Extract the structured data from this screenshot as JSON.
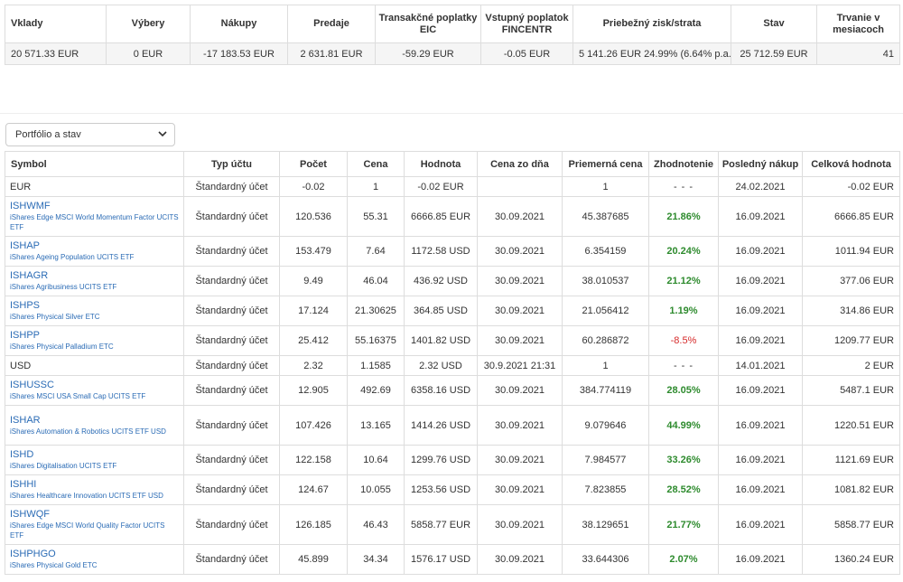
{
  "summary": {
    "headers": [
      "Vklady",
      "Výbery",
      "Nákupy",
      "Predaje",
      "Transakčné poplatky EIC",
      "Vstupný poplatok FINCENTR",
      "Priebežný zisk/strata",
      "Stav",
      "Trvanie v mesiacoch"
    ],
    "values": [
      "20 571.33 EUR",
      "0 EUR",
      "-17 183.53 EUR",
      "2 631.81 EUR",
      "-59.29 EUR",
      "-0.05 EUR",
      "5 141.26 EUR 24.99% (6.64% p.a.)",
      "25 712.59 EUR",
      "41"
    ]
  },
  "filter": {
    "selected": "Portfólio a stav"
  },
  "holdings": {
    "headers": [
      "Symbol",
      "Typ účtu",
      "Počet",
      "Cena",
      "Hodnota",
      "Cena zo dňa",
      "Priemerná cena",
      "Zhodnotenie",
      "Posledný nákup",
      "Celková hodnota"
    ],
    "rows": [
      {
        "symbol": "EUR",
        "desc": "",
        "type": "Štandardný účet",
        "count": "-0.02",
        "price": "1",
        "value": "-0.02 EUR",
        "price_date": "",
        "avg": "1",
        "gain": "- - -",
        "gain_kind": "none",
        "last": "24.02.2021",
        "total": "-0.02 EUR"
      },
      {
        "symbol": "ISHWMF",
        "desc": "iShares Edge MSCI World Momentum Factor UCITS ETF",
        "type": "Štandardný účet",
        "count": "120.536",
        "price": "55.31",
        "value": "6666.85 EUR",
        "price_date": "30.09.2021",
        "avg": "45.387685",
        "gain": "21.86%",
        "gain_kind": "pos",
        "last": "16.09.2021",
        "total": "6666.85 EUR"
      },
      {
        "symbol": "ISHAP",
        "desc": "iShares Ageing Population UCITS ETF",
        "type": "Štandardný účet",
        "count": "153.479",
        "price": "7.64",
        "value": "1172.58 USD",
        "price_date": "30.09.2021",
        "avg": "6.354159",
        "gain": "20.24%",
        "gain_kind": "pos",
        "last": "16.09.2021",
        "total": "1011.94 EUR"
      },
      {
        "symbol": "ISHAGR",
        "desc": "iShares Agribusiness UCITS ETF",
        "type": "Štandardný účet",
        "count": "9.49",
        "price": "46.04",
        "value": "436.92 USD",
        "price_date": "30.09.2021",
        "avg": "38.010537",
        "gain": "21.12%",
        "gain_kind": "pos",
        "last": "16.09.2021",
        "total": "377.06 EUR"
      },
      {
        "symbol": "ISHPS",
        "desc": "iShares Physical Silver ETC",
        "type": "Štandardný účet",
        "count": "17.124",
        "price": "21.30625",
        "value": "364.85 USD",
        "price_date": "30.09.2021",
        "avg": "21.056412",
        "gain": "1.19%",
        "gain_kind": "pos",
        "last": "16.09.2021",
        "total": "314.86 EUR"
      },
      {
        "symbol": "ISHPP",
        "desc": "iShares Physical Palladium ETC",
        "type": "Štandardný účet",
        "count": "25.412",
        "price": "55.16375",
        "value": "1401.82 USD",
        "price_date": "30.09.2021",
        "avg": "60.286872",
        "gain": "-8.5%",
        "gain_kind": "neg",
        "last": "16.09.2021",
        "total": "1209.77 EUR"
      },
      {
        "symbol": "USD",
        "desc": "",
        "type": "Štandardný účet",
        "count": "2.32",
        "price": "1.1585",
        "value": "2.32 USD",
        "price_date": "30.9.2021 21:31",
        "avg": "1",
        "gain": "- - -",
        "gain_kind": "none",
        "last": "14.01.2021",
        "total": "2 EUR"
      },
      {
        "symbol": "ISHUSSC",
        "desc": "iShares MSCI USA Small Cap UCITS ETF",
        "type": "Štandardný účet",
        "count": "12.905",
        "price": "492.69",
        "value": "6358.16 USD",
        "price_date": "30.09.2021",
        "avg": "384.774119",
        "gain": "28.05%",
        "gain_kind": "pos",
        "last": "16.09.2021",
        "total": "5487.1 EUR"
      },
      {
        "symbol": "ISHAR",
        "desc": "iShares Automation & Robotics UCITS ETF USD",
        "type": "Štandardný účet",
        "count": "107.426",
        "price": "13.165",
        "value": "1414.26 USD",
        "price_date": "30.09.2021",
        "avg": "9.079646",
        "gain": "44.99%",
        "gain_kind": "pos",
        "last": "16.09.2021",
        "total": "1220.51 EUR"
      },
      {
        "symbol": "ISHD",
        "desc": "iShares Digitalisation UCITS ETF",
        "type": "Štandardný účet",
        "count": "122.158",
        "price": "10.64",
        "value": "1299.76 USD",
        "price_date": "30.09.2021",
        "avg": "7.984577",
        "gain": "33.26%",
        "gain_kind": "pos",
        "last": "16.09.2021",
        "total": "1121.69 EUR"
      },
      {
        "symbol": "ISHHI",
        "desc": "iShares Healthcare Innovation UCITS ETF USD",
        "type": "Štandardný účet",
        "count": "124.67",
        "price": "10.055",
        "value": "1253.56 USD",
        "price_date": "30.09.2021",
        "avg": "7.823855",
        "gain": "28.52%",
        "gain_kind": "pos",
        "last": "16.09.2021",
        "total": "1081.82 EUR"
      },
      {
        "symbol": "ISHWQF",
        "desc": "iShares Edge MSCI World Quality Factor UCITS ETF",
        "type": "Štandardný účet",
        "count": "126.185",
        "price": "46.43",
        "value": "5858.77 EUR",
        "price_date": "30.09.2021",
        "avg": "38.129651",
        "gain": "21.77%",
        "gain_kind": "pos",
        "last": "16.09.2021",
        "total": "5858.77 EUR"
      },
      {
        "symbol": "ISHPHGO",
        "desc": "iShares Physical Gold ETC",
        "type": "Štandardný účet",
        "count": "45.899",
        "price": "34.34",
        "value": "1576.17 USD",
        "price_date": "30.09.2021",
        "avg": "33.644306",
        "gain": "2.07%",
        "gain_kind": "pos",
        "last": "16.09.2021",
        "total": "1360.24 EUR"
      }
    ]
  },
  "colors": {
    "link": "#2a6bb5",
    "positive": "#2e8b2e",
    "negative": "#d62b2b"
  },
  "icons": {
    "select_chevron": "chevron-down-icon"
  }
}
